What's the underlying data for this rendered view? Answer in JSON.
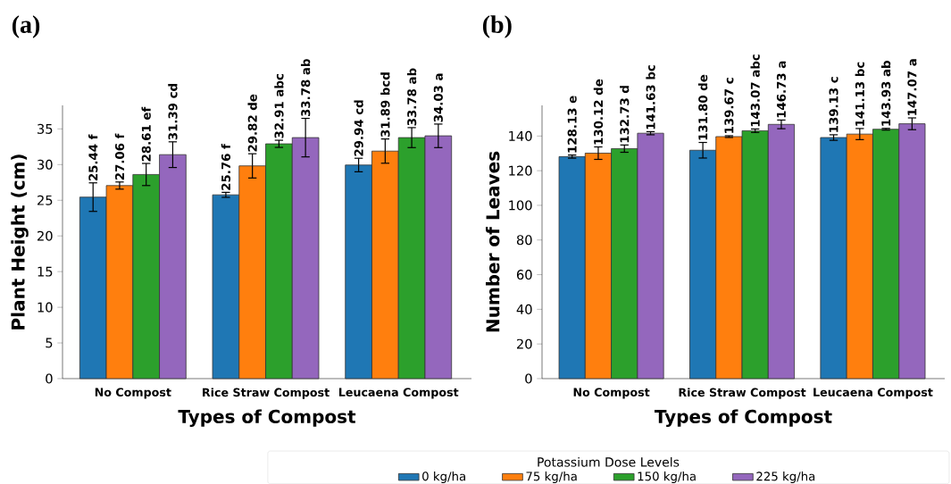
{
  "chart_data": [
    {
      "type": "bar",
      "title": "(a)",
      "xlabel": "Types of Compost",
      "ylabel": "Plant Height (cm)",
      "categories": [
        "No Compost",
        "Rice Straw Compost",
        "Leucaena Compost"
      ],
      "ylim": [
        0,
        38.3
      ],
      "yticks": [
        0,
        5,
        10,
        15,
        20,
        25,
        30,
        35
      ],
      "legend": "bottom",
      "legend_title": "Potassium Dose Levels",
      "series": [
        {
          "name": "0 kg/ha",
          "color": "#1f77b4",
          "values": [
            25.44,
            25.76,
            29.94
          ],
          "errors": [
            2.0,
            0.35,
            0.95
          ],
          "value_labels": [
            "25.44 f",
            "25.76 f",
            "29.94 cd"
          ]
        },
        {
          "name": "75 kg/ha",
          "color": "#ff7f0e",
          "values": [
            27.06,
            29.82,
            31.89
          ],
          "errors": [
            0.5,
            1.7,
            1.7
          ],
          "value_labels": [
            "27.06 f",
            "29.82 de",
            "31.89 bcd"
          ]
        },
        {
          "name": "150 kg/ha",
          "color": "#2ca02c",
          "values": [
            28.61,
            32.91,
            33.78
          ],
          "errors": [
            1.55,
            0.5,
            1.4
          ],
          "value_labels": [
            "28.61 ef",
            "32.91 abc",
            "33.78 ab"
          ]
        },
        {
          "name": "225 kg/ha",
          "color": "#9467bd",
          "values": [
            31.39,
            33.78,
            34.03
          ],
          "errors": [
            1.8,
            2.7,
            1.65
          ],
          "value_labels": [
            "31.39 cd",
            "33.78 ab",
            "34.03 a"
          ]
        }
      ]
    },
    {
      "type": "bar",
      "title": "(b)",
      "xlabel": "Types of Compost",
      "ylabel": "Number of Leaves",
      "categories": [
        "No Compost",
        "Rice Straw Compost",
        "Leucaena Compost"
      ],
      "ylim": [
        0,
        157.7
      ],
      "yticks": [
        0,
        20,
        40,
        60,
        80,
        100,
        120,
        140
      ],
      "series": [
        {
          "color": "#1f77b4",
          "values": [
            128.13,
            131.8,
            139.13
          ],
          "errors": [
            0.9,
            4.5,
            1.6
          ],
          "value_labels": [
            "128.13 e",
            "131.80 de",
            "139.13 c"
          ]
        },
        {
          "color": "#ff7f0e",
          "values": [
            130.12,
            139.67,
            141.13
          ],
          "errors": [
            3.6,
            0.5,
            3.2
          ],
          "value_labels": [
            "130.12 de",
            "139.67 c",
            "141.13 bc"
          ]
        },
        {
          "color": "#2ca02c",
          "values": [
            132.73,
            143.07,
            143.93
          ],
          "errors": [
            2.1,
            1.0,
            0.5
          ],
          "value_labels": [
            "132.73 d",
            "143.07 abc",
            "143.93 ab"
          ]
        },
        {
          "color": "#9467bd",
          "values": [
            141.63,
            146.73,
            147.07
          ],
          "errors": [
            0.9,
            2.5,
            3.4
          ],
          "value_labels": [
            "141.63 bc",
            "146.73 a",
            "147.07 a"
          ]
        }
      ]
    }
  ]
}
